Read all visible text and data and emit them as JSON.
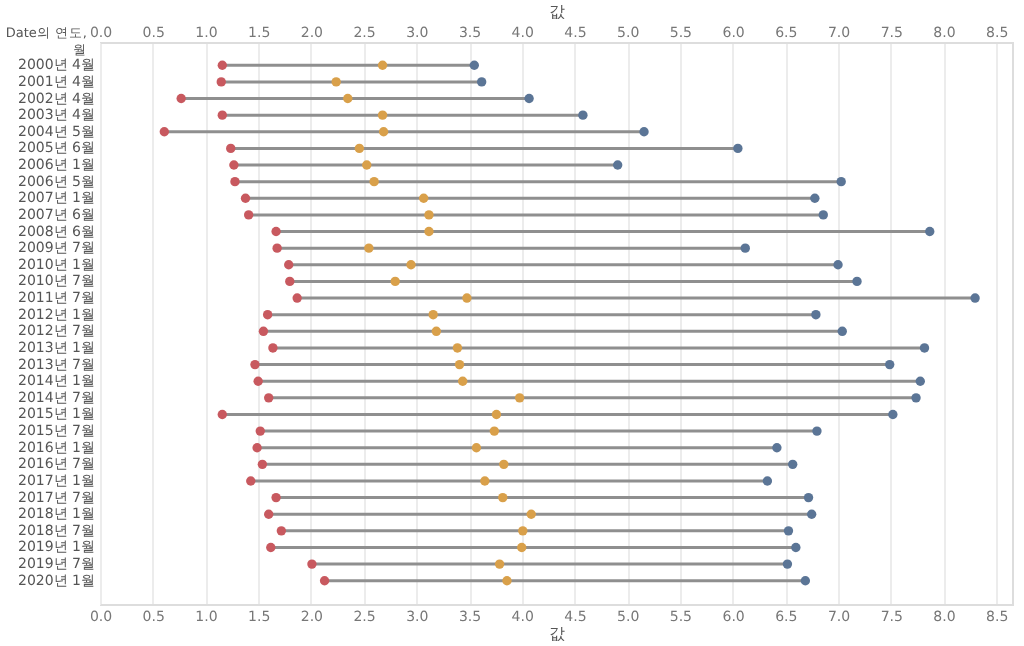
{
  "chart_data": {
    "type": "scatter",
    "orientation": "horizontal",
    "xlabel": "값",
    "x2label": "값",
    "ylabel": "Date의 연도, 월",
    "categories": [
      "2000년 4월",
      "2001년 4월",
      "2002년 4월",
      "2003년 4월",
      "2004년 5월",
      "2005년 6월",
      "2006년 1월",
      "2006년 5월",
      "2007년 1월",
      "2007년 6월",
      "2008년 6월",
      "2009년 7월",
      "2010년 1월",
      "2010년 7월",
      "2011년 7월",
      "2012년 1월",
      "2012년 7월",
      "2013년 1월",
      "2013년 7월",
      "2014년 1월",
      "2014년 7월",
      "2015년 1월",
      "2015년 7월",
      "2016년 1월",
      "2016년 7월",
      "2017년 1월",
      "2017년 7월",
      "2018년 1월",
      "2018년 7월",
      "2019년 1월",
      "2019년 7월",
      "2020년 1월"
    ],
    "series": [
      {
        "color": "#c8595f",
        "values": [
          1.16,
          1.15,
          0.77,
          1.16,
          0.61,
          1.24,
          1.27,
          1.28,
          1.38,
          1.41,
          1.67,
          1.68,
          1.79,
          1.8,
          1.87,
          1.59,
          1.55,
          1.64,
          1.47,
          1.5,
          1.6,
          1.16,
          1.52,
          1.49,
          1.54,
          1.43,
          1.67,
          1.6,
          1.72,
          1.62,
          2.01,
          2.13
        ]
      },
      {
        "color": "#d9a04a",
        "values": [
          2.68,
          2.24,
          2.35,
          2.68,
          2.69,
          2.46,
          2.53,
          2.6,
          3.07,
          3.12,
          3.12,
          2.55,
          2.95,
          2.8,
          3.48,
          3.16,
          3.19,
          3.39,
          3.41,
          3.44,
          3.98,
          3.76,
          3.74,
          3.57,
          3.83,
          3.65,
          3.82,
          4.09,
          4.01,
          4.0,
          3.79,
          3.86
        ]
      },
      {
        "color": "#5b7596",
        "values": [
          3.55,
          3.62,
          4.07,
          4.58,
          5.16,
          6.05,
          4.91,
          7.03,
          6.78,
          6.86,
          7.87,
          6.12,
          7.0,
          7.18,
          8.3,
          6.79,
          7.04,
          7.82,
          7.49,
          7.78,
          7.74,
          7.52,
          6.8,
          6.42,
          6.57,
          6.33,
          6.72,
          6.75,
          6.53,
          6.6,
          6.52,
          6.69
        ]
      }
    ],
    "xlim": [
      0,
      8.65
    ],
    "xticks": [
      {
        "value": 0,
        "label": "0.0"
      },
      {
        "value": 0.5,
        "label": "0.5"
      },
      {
        "value": 1,
        "label": "1.0"
      },
      {
        "value": 1.5,
        "label": "1.5"
      },
      {
        "value": 2,
        "label": "2.0"
      },
      {
        "value": 2.5,
        "label": "2.5"
      },
      {
        "value": 3,
        "label": "3.0"
      },
      {
        "value": 3.5,
        "label": "3.5"
      },
      {
        "value": 4,
        "label": "4.0"
      },
      {
        "value": 4.5,
        "label": "4.5"
      },
      {
        "value": 5,
        "label": "5.0"
      },
      {
        "value": 5.5,
        "label": "5.5"
      },
      {
        "value": 6,
        "label": "6.0"
      },
      {
        "value": 6.5,
        "label": "6.5"
      },
      {
        "value": 7,
        "label": "7.0"
      },
      {
        "value": 7.5,
        "label": "7.5"
      },
      {
        "value": 8,
        "label": "8.0"
      },
      {
        "value": 8.5,
        "label": "8.5"
      }
    ],
    "x2lim": [
      0,
      8.65
    ],
    "x2ticks": [
      {
        "value": 0,
        "label": "0.0"
      },
      {
        "value": 0.5,
        "label": "0.5"
      },
      {
        "value": 1,
        "label": "1.0"
      },
      {
        "value": 1.5,
        "label": "1.5"
      },
      {
        "value": 2,
        "label": "2.0"
      },
      {
        "value": 2.5,
        "label": "2.5"
      },
      {
        "value": 3,
        "label": "3.0"
      },
      {
        "value": 3.5,
        "label": "3.5"
      },
      {
        "value": 4,
        "label": "4.0"
      },
      {
        "value": 4.5,
        "label": "4.5"
      },
      {
        "value": 5,
        "label": "5.0"
      },
      {
        "value": 5.5,
        "label": "5.5"
      },
      {
        "value": 6,
        "label": "6.0"
      },
      {
        "value": 6.5,
        "label": "6.5"
      },
      {
        "value": 7,
        "label": "7.0"
      },
      {
        "value": 7.5,
        "label": "7.5"
      },
      {
        "value": 8,
        "label": "8.0"
      },
      {
        "value": 8.5,
        "label": "8.5"
      }
    ],
    "grid": "x",
    "marker": "circle",
    "legend": false
  }
}
